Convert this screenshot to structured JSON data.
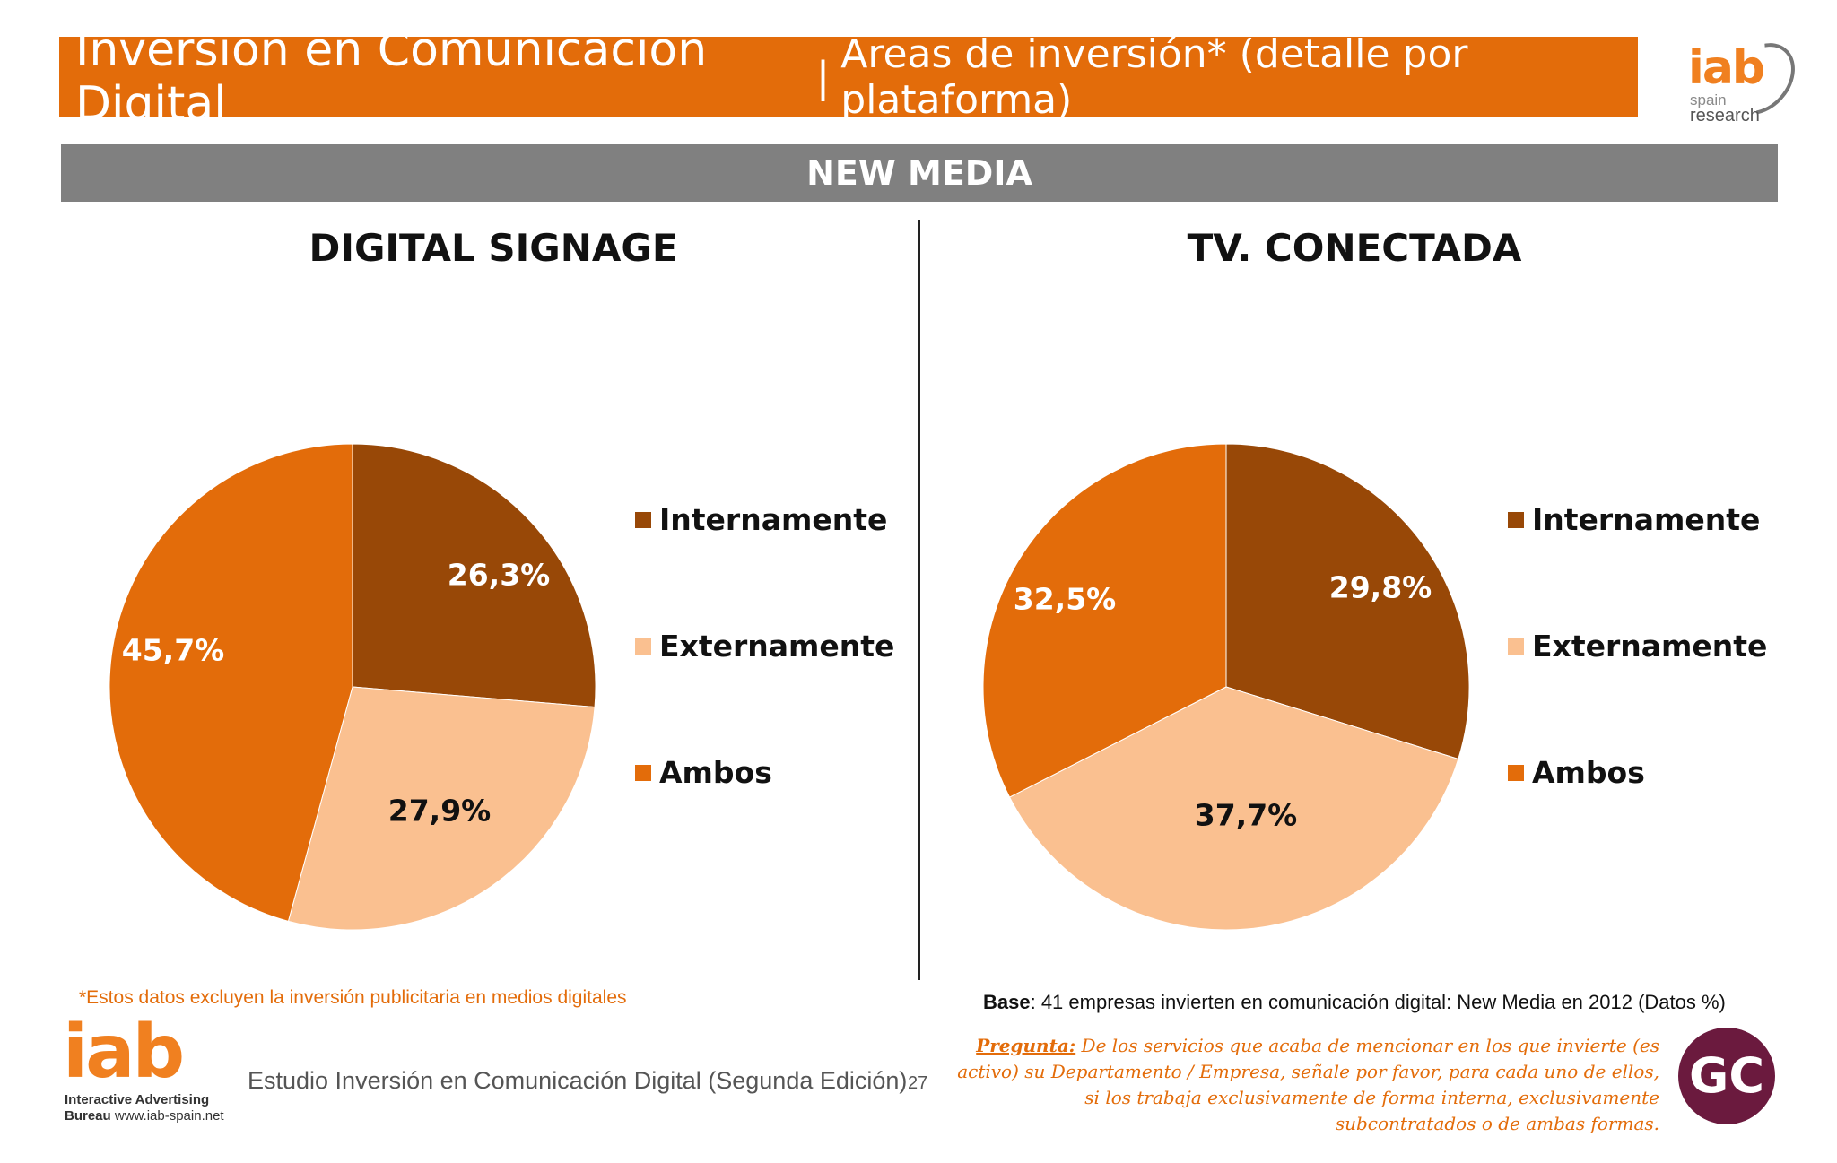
{
  "header": {
    "title_main": "Inversión en Comunicación Digital",
    "title_sep": "|",
    "title_sub": "Áreas de inversión* (detalle por plataforma)"
  },
  "logo_top": {
    "iab": "iab",
    "spain": "spain",
    "research": "research"
  },
  "section": {
    "label": "NEW MEDIA"
  },
  "chart_data": [
    {
      "type": "pie",
      "title": "DIGITAL SIGNAGE",
      "categories": [
        "Internamente",
        "Externamente",
        "Ambos"
      ],
      "values": [
        26.3,
        27.9,
        45.7
      ],
      "labels": [
        "26,3%",
        "27,9%",
        "45,7%"
      ],
      "colors": [
        "#984807",
        "#FAC090",
        "#E36C0A"
      ],
      "label_colors": [
        "#ffffff",
        "#111111",
        "#ffffff"
      ],
      "legend_position": "right"
    },
    {
      "type": "pie",
      "title": "TV. CONECTADA",
      "categories": [
        "Internamente",
        "Externamente",
        "Ambos"
      ],
      "values": [
        29.8,
        37.7,
        32.5
      ],
      "labels": [
        "29,8%",
        "37,7%",
        "32,5%"
      ],
      "colors": [
        "#984807",
        "#FAC090",
        "#E36C0A"
      ],
      "label_colors": [
        "#ffffff",
        "#111111",
        "#ffffff"
      ],
      "legend_position": "right"
    }
  ],
  "footer": {
    "footnote": "*Estos datos excluyen la inversión publicitaria en medios digitales",
    "base_label": "Base",
    "base_text": ": 41 empresas invierten en comunicación digital: New Media en 2012 (Datos %)",
    "question_label": "Pregunta:",
    "question_text": " De los servicios que acaba de mencionar en los que invierte (es activo) su Departamento / Empresa, señale por favor, para cada uno de ellos, si los trabaja exclusivamente de forma interna, exclusivamente subcontratados o de ambas formas.",
    "study": "Estudio Inversión en Comunicación Digital (Segunda Edición)",
    "page_number": "27"
  },
  "logo_bottom": {
    "iab": "iab",
    "line1": "Interactive Advertising",
    "line2_bold": "Bureau",
    "line2_url": " www.iab-spain.net"
  },
  "gc_logo": {
    "text": "GC"
  }
}
